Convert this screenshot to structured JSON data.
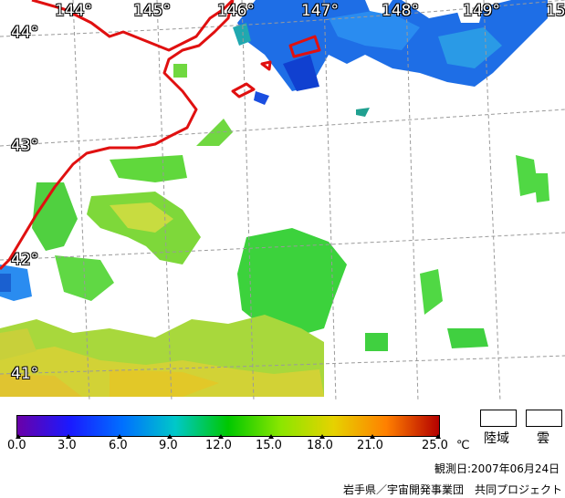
{
  "longitudes": [
    "144°",
    "145°",
    "146°",
    "147°",
    "148°",
    "149°",
    "15"
  ],
  "latitudes": [
    "44°",
    "43°",
    "42°",
    "41°"
  ],
  "colorbar": {
    "ticks": [
      "0.0",
      "3.0",
      "6.0",
      "9.0",
      "12.0",
      "15.0",
      "18.0",
      "21.0",
      "25.0"
    ],
    "unit": "℃",
    "colors": [
      "#6a00a8",
      "#1a1aff",
      "#0070ff",
      "#00c8c8",
      "#00c800",
      "#8ce600",
      "#e6d200",
      "#ff8000",
      "#b40000"
    ]
  },
  "legend": {
    "land_label": "陸域",
    "cloud_label": "雲"
  },
  "observation": "観測日:2007年06月24日",
  "credit": "岩手県／宇宙開発事業団　共同プロジェクト"
}
